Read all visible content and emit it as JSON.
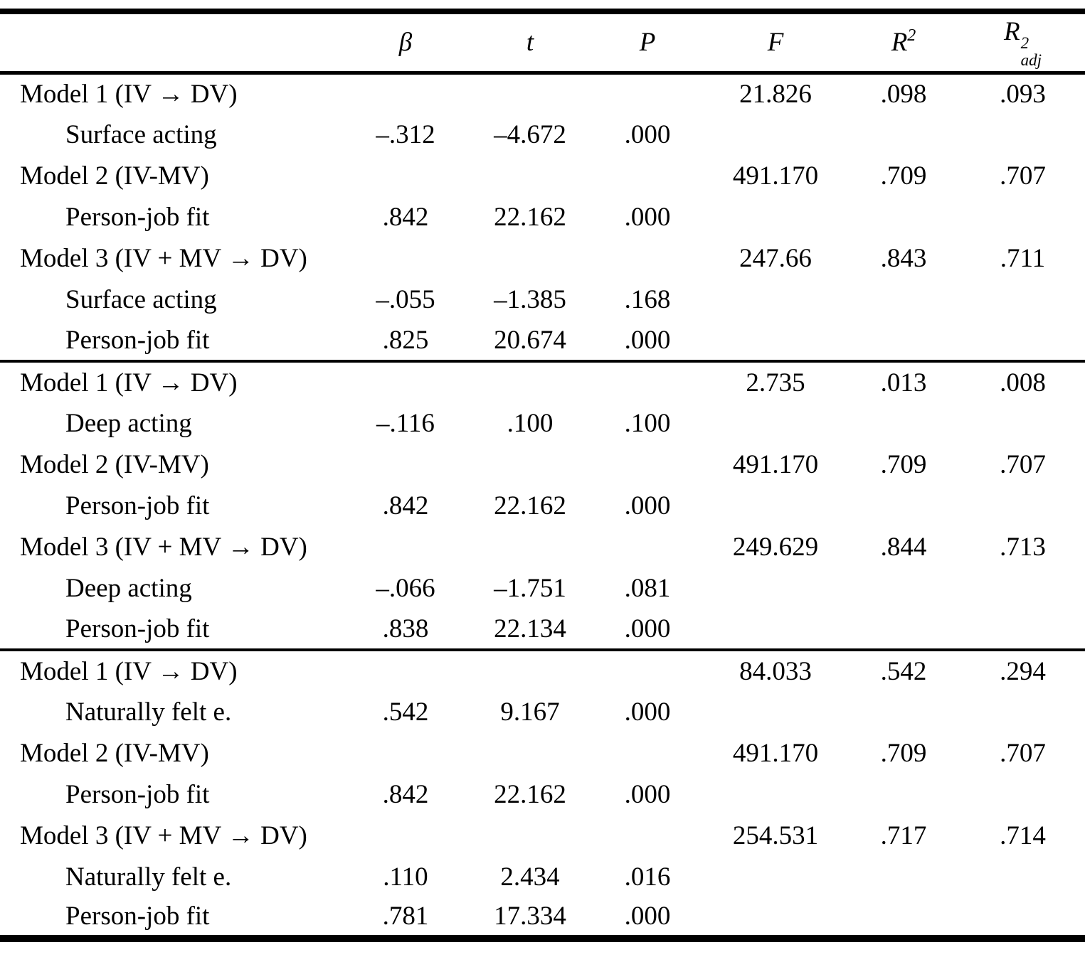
{
  "table": {
    "header": {
      "beta": "β",
      "t": "t",
      "p": "P",
      "f": "F",
      "r2": {
        "base": "R",
        "sup": "2"
      },
      "r2adj": {
        "base": "R",
        "sup": "2",
        "sub": "adj"
      }
    },
    "column_keys": [
      "label",
      "beta",
      "t",
      "p",
      "f",
      "r2",
      "r2adj"
    ],
    "sections": [
      {
        "name": "surface-acting",
        "rows": [
          {
            "label": "Model 1 (IV → DV)",
            "indent": false,
            "beta": "",
            "t": "",
            "p": "",
            "f": "21.826",
            "r2": ".098",
            "r2adj": ".093"
          },
          {
            "label": "Surface acting",
            "indent": true,
            "beta": "–.312",
            "t": "–4.672",
            "p": ".000",
            "f": "",
            "r2": "",
            "r2adj": ""
          },
          {
            "label": "Model 2 (IV-MV)",
            "indent": false,
            "beta": "",
            "t": "",
            "p": "",
            "f": "491.170",
            "r2": ".709",
            "r2adj": ".707"
          },
          {
            "label": "Person-job fit",
            "indent": true,
            "beta": ".842",
            "t": "22.162",
            "p": ".000",
            "f": "",
            "r2": "",
            "r2adj": ""
          },
          {
            "label": "Model 3 (IV + MV → DV)",
            "indent": false,
            "beta": "",
            "t": "",
            "p": "",
            "f": "247.66",
            "r2": ".843",
            "r2adj": ".711"
          },
          {
            "label": "Surface acting",
            "indent": true,
            "beta": "–.055",
            "t": "–1.385",
            "p": ".168",
            "f": "",
            "r2": "",
            "r2adj": ""
          },
          {
            "label": "Person-job fit",
            "indent": true,
            "beta": ".825",
            "t": "20.674",
            "p": ".000",
            "f": "",
            "r2": "",
            "r2adj": ""
          }
        ]
      },
      {
        "name": "deep-acting",
        "rows": [
          {
            "label": "Model 1 (IV → DV)",
            "indent": false,
            "beta": "",
            "t": "",
            "p": "",
            "f": "2.735",
            "r2": ".013",
            "r2adj": ".008"
          },
          {
            "label": "Deep acting",
            "indent": true,
            "beta": "–.116",
            "t": ".100",
            "p": ".100",
            "f": "",
            "r2": "",
            "r2adj": ""
          },
          {
            "label": "Model 2 (IV-MV)",
            "indent": false,
            "beta": "",
            "t": "",
            "p": "",
            "f": "491.170",
            "r2": ".709",
            "r2adj": ".707"
          },
          {
            "label": "Person-job fit",
            "indent": true,
            "beta": ".842",
            "t": "22.162",
            "p": ".000",
            "f": "",
            "r2": "",
            "r2adj": ""
          },
          {
            "label": "Model 3 (IV + MV → DV)",
            "indent": false,
            "beta": "",
            "t": "",
            "p": "",
            "f": "249.629",
            "r2": ".844",
            "r2adj": ".713"
          },
          {
            "label": "Deep acting",
            "indent": true,
            "beta": "–.066",
            "t": "–1.751",
            "p": ".081",
            "f": "",
            "r2": "",
            "r2adj": ""
          },
          {
            "label": "Person-job fit",
            "indent": true,
            "beta": ".838",
            "t": "22.134",
            "p": ".000",
            "f": "",
            "r2": "",
            "r2adj": ""
          }
        ]
      },
      {
        "name": "naturally-felt-emotions",
        "rows": [
          {
            "label": "Model 1 (IV → DV)",
            "indent": false,
            "beta": "",
            "t": "",
            "p": "",
            "f": "84.033",
            "r2": ".542",
            "r2adj": ".294"
          },
          {
            "label": "Naturally felt e.",
            "indent": true,
            "beta": ".542",
            "t": "9.167",
            "p": ".000",
            "f": "",
            "r2": "",
            "r2adj": ""
          },
          {
            "label": "Model 2 (IV-MV)",
            "indent": false,
            "beta": "",
            "t": "",
            "p": "",
            "f": "491.170",
            "r2": ".709",
            "r2adj": ".707"
          },
          {
            "label": "Person-job fit",
            "indent": true,
            "beta": ".842",
            "t": "22.162",
            "p": ".000",
            "f": "",
            "r2": "",
            "r2adj": ""
          },
          {
            "label": "Model 3 (IV + MV → DV)",
            "indent": false,
            "beta": "",
            "t": "",
            "p": "",
            "f": "254.531",
            "r2": ".717",
            "r2adj": ".714"
          },
          {
            "label": "Naturally felt e.",
            "indent": true,
            "beta": ".110",
            "t": "2.434",
            "p": ".016",
            "f": "",
            "r2": "",
            "r2adj": ""
          },
          {
            "label": "Person-job fit",
            "indent": true,
            "beta": ".781",
            "t": "17.334",
            "p": ".000",
            "f": "",
            "r2": "",
            "r2adj": ""
          }
        ]
      }
    ]
  },
  "colors": {
    "background": "#ffffff",
    "text": "#000000",
    "rule": "#000000"
  }
}
